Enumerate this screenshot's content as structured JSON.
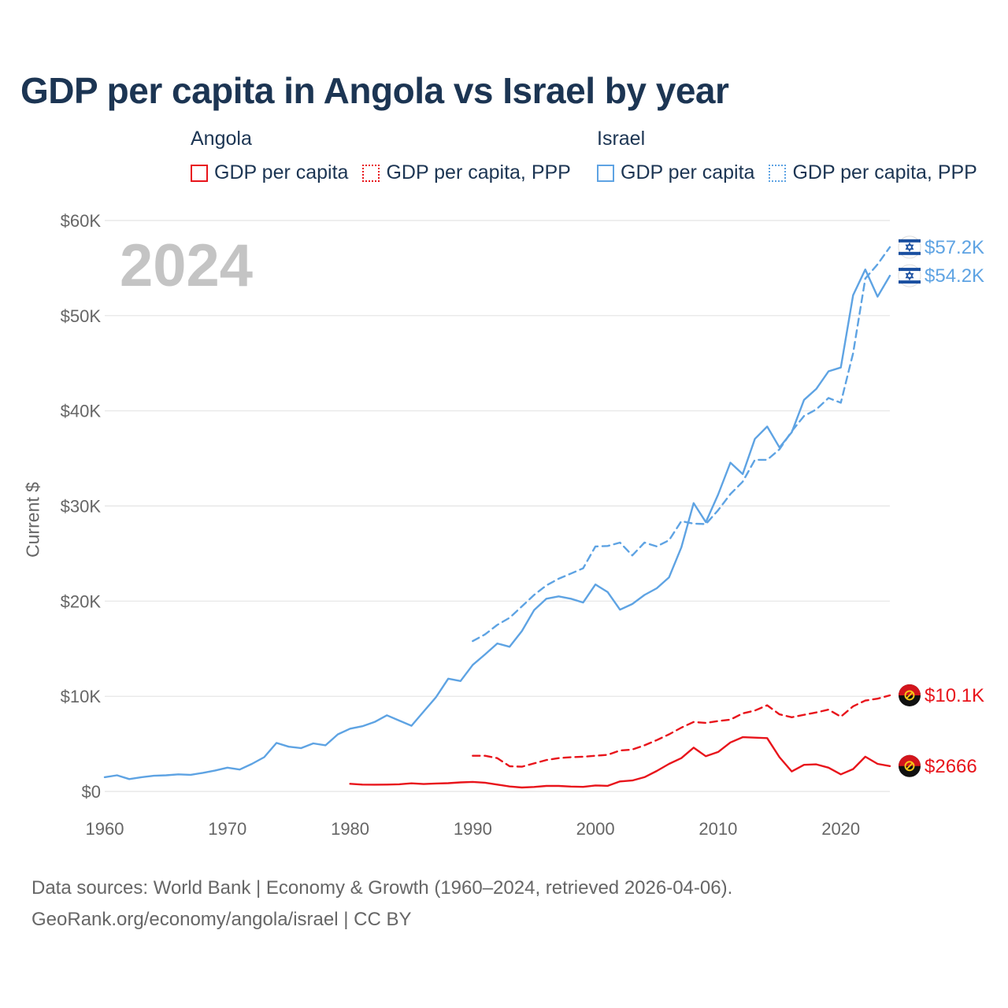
{
  "chart_data": {
    "type": "line",
    "title": "GDP per capita in Angola vs Israel by year",
    "ylabel": "Current $",
    "xlabel": "",
    "xlim": [
      1960,
      2024
    ],
    "ylim": [
      0,
      60000
    ],
    "x_ticks": [
      1960,
      1970,
      1980,
      1990,
      2000,
      2010,
      2020
    ],
    "y_ticks": [
      0,
      10000,
      20000,
      30000,
      40000,
      50000,
      60000
    ],
    "y_tick_labels": [
      "$0",
      "$10K",
      "$20K",
      "$30K",
      "$40K",
      "$50K",
      "$60K"
    ],
    "year_watermark": "2024",
    "legend": {
      "angola": {
        "heading": "Angola",
        "gdp_label": "GDP per capita",
        "ppp_label": "GDP per capita, PPP"
      },
      "israel": {
        "heading": "Israel",
        "gdp_label": "GDP per capita",
        "ppp_label": "GDP per capita, PPP"
      }
    },
    "series": [
      {
        "name": "Israel GDP per capita",
        "country": "Israel",
        "color": "#5ea3e3",
        "style": "solid",
        "end_label": "$54.2K",
        "x": [
          1960,
          1961,
          1962,
          1963,
          1964,
          1965,
          1966,
          1967,
          1968,
          1969,
          1970,
          1971,
          1972,
          1973,
          1974,
          1975,
          1976,
          1977,
          1978,
          1979,
          1980,
          1981,
          1982,
          1983,
          1984,
          1985,
          1986,
          1987,
          1988,
          1989,
          1990,
          1991,
          1992,
          1993,
          1994,
          1995,
          1996,
          1997,
          1998,
          1999,
          2000,
          2001,
          2002,
          2003,
          2004,
          2005,
          2006,
          2007,
          2008,
          2009,
          2010,
          2011,
          2012,
          2013,
          2014,
          2015,
          2016,
          2017,
          2018,
          2019,
          2020,
          2021,
          2022,
          2023,
          2024
        ],
        "values": [
          1500,
          1700,
          1300,
          1500,
          1650,
          1700,
          1800,
          1750,
          1950,
          2200,
          2500,
          2300,
          2900,
          3600,
          5100,
          4700,
          4550,
          5050,
          4850,
          6000,
          6600,
          6850,
          7300,
          8000,
          7450,
          6900,
          8400,
          9900,
          11850,
          11600,
          13300,
          14400,
          15550,
          15200,
          16850,
          19050,
          20250,
          20500,
          20250,
          19850,
          21750,
          20950,
          19100,
          19700,
          20650,
          21350,
          22500,
          25650,
          30300,
          28300,
          31200,
          34550,
          33350,
          37050,
          38350,
          36150,
          37750,
          41150,
          42300,
          44150,
          44550,
          52150,
          54850,
          52000,
          54200
        ]
      },
      {
        "name": "Israel GDP per capita, PPP",
        "country": "Israel",
        "color": "#5ea3e3",
        "style": "dashed",
        "end_label": "$57.2K",
        "x": [
          1990,
          1991,
          1992,
          1993,
          1994,
          1995,
          1996,
          1997,
          1998,
          1999,
          2000,
          2001,
          2002,
          2003,
          2004,
          2005,
          2006,
          2007,
          2008,
          2009,
          2010,
          2011,
          2012,
          2013,
          2014,
          2015,
          2016,
          2017,
          2018,
          2019,
          2020,
          2021,
          2022,
          2023,
          2024
        ],
        "values": [
          15800,
          16500,
          17500,
          18250,
          19450,
          20650,
          21650,
          22350,
          22900,
          23450,
          25750,
          25800,
          26150,
          24800,
          26150,
          25750,
          26400,
          28400,
          28150,
          28100,
          29550,
          31250,
          32550,
          34850,
          34850,
          35950,
          37850,
          39450,
          40150,
          41350,
          40850,
          46050,
          53900,
          55400,
          57200
        ]
      },
      {
        "name": "Angola GDP per capita",
        "country": "Angola",
        "color": "#e8141b",
        "style": "solid",
        "end_label": "$2666",
        "x": [
          1980,
          1981,
          1982,
          1983,
          1984,
          1985,
          1986,
          1987,
          1988,
          1989,
          1990,
          1991,
          1992,
          1993,
          1994,
          1995,
          1996,
          1997,
          1998,
          1999,
          2000,
          2001,
          2002,
          2003,
          2004,
          2005,
          2006,
          2007,
          2008,
          2009,
          2010,
          2011,
          2012,
          2013,
          2014,
          2015,
          2016,
          2017,
          2018,
          2019,
          2020,
          2021,
          2022,
          2023,
          2024
        ],
        "values": [
          800,
          720,
          710,
          720,
          750,
          850,
          780,
          840,
          870,
          950,
          1000,
          920,
          720,
          520,
          410,
          470,
          580,
          580,
          510,
          480,
          630,
          590,
          1050,
          1150,
          1500,
          2150,
          2900,
          3500,
          4600,
          3700,
          4150,
          5150,
          5700,
          5650,
          5600,
          3600,
          2100,
          2800,
          2850,
          2500,
          1800,
          2350,
          3650,
          2900,
          2666
        ]
      },
      {
        "name": "Angola GDP per capita, PPP",
        "country": "Angola",
        "color": "#e8141b",
        "style": "dashed",
        "end_label": "$10.1K",
        "x": [
          1990,
          1991,
          1992,
          1993,
          1994,
          1995,
          1996,
          1997,
          1998,
          1999,
          2000,
          2001,
          2002,
          2003,
          2004,
          2005,
          2006,
          2007,
          2008,
          2009,
          2010,
          2011,
          2012,
          2013,
          2014,
          2015,
          2016,
          2017,
          2018,
          2019,
          2020,
          2021,
          2022,
          2023,
          2024
        ],
        "values": [
          3750,
          3750,
          3500,
          2650,
          2600,
          2950,
          3300,
          3500,
          3600,
          3650,
          3750,
          3850,
          4300,
          4400,
          4850,
          5400,
          6000,
          6700,
          7300,
          7200,
          7400,
          7550,
          8200,
          8500,
          9050,
          8100,
          7800,
          8050,
          8300,
          8600,
          7850,
          8950,
          9550,
          9750,
          10100
        ]
      }
    ]
  },
  "source": {
    "line1": "Data sources: World Bank | Economy & Growth (1960–2024, retrieved 2026-04-06).",
    "line2": "GeoRank.org/economy/angola/israel | CC BY"
  },
  "colors": {
    "angola": "#e8141b",
    "israel": "#5ea3e3",
    "title": "#1c3553",
    "muted": "#666666"
  }
}
